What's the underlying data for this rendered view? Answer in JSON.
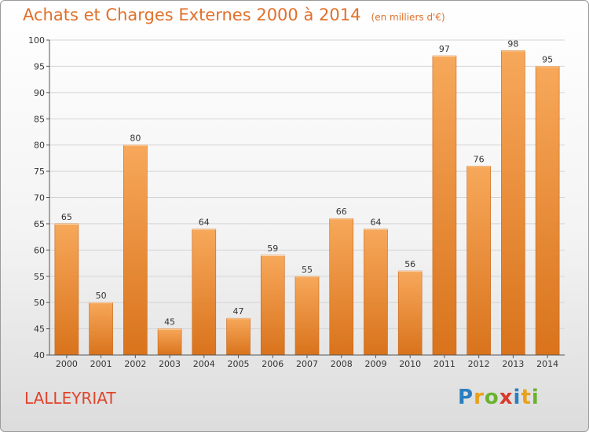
{
  "chart_data": {
    "type": "bar",
    "title": "Achats et Charges Externes 2000 à 2014",
    "subtitle": "(en milliers d'€)",
    "xlabel": "",
    "ylabel": "",
    "categories": [
      "2000",
      "2001",
      "2002",
      "2003",
      "2004",
      "2005",
      "2006",
      "2007",
      "2008",
      "2009",
      "2010",
      "2011",
      "2012",
      "2013",
      "2014"
    ],
    "values": [
      65,
      50,
      80,
      45,
      64,
      47,
      59,
      55,
      66,
      64,
      56,
      97,
      76,
      98,
      95
    ],
    "ylim": [
      40,
      100
    ],
    "yticks": [
      40,
      45,
      50,
      55,
      60,
      65,
      70,
      75,
      80,
      85,
      90,
      95,
      100
    ],
    "grid": "horizontal",
    "legend": "none",
    "bar_color_top": "#f7a85a",
    "bar_color_bottom": "#d9731c"
  },
  "location": "LALLEYRIAT",
  "logo": {
    "letters": [
      "P",
      "r",
      "o",
      "x",
      "i",
      "t",
      "i"
    ],
    "colors": [
      "#2a7fc1",
      "#e8a21a",
      "#6bb32e",
      "#d93a2b",
      "#2a7fc1",
      "#e8a21a",
      "#6bb32e"
    ]
  }
}
